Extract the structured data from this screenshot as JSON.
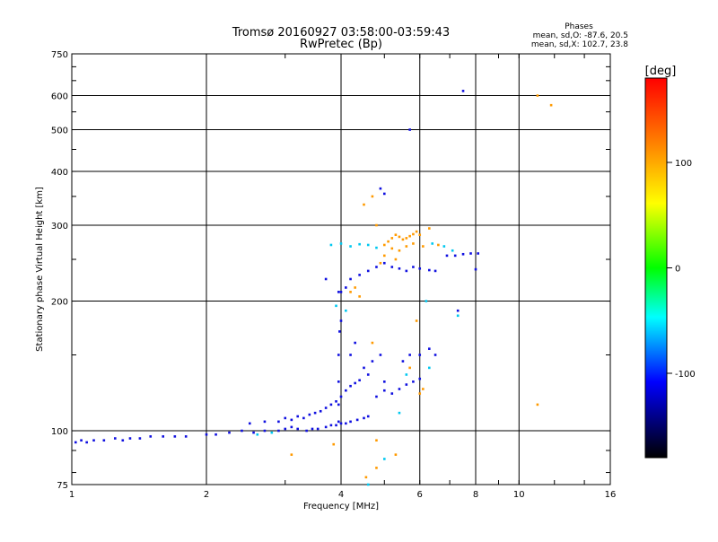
{
  "chart_data": {
    "type": "scatter",
    "title": "Tromsø 20160927 03:58:00-03:59:43",
    "subtitle": "RwPretec (Bp)",
    "xlabel": "Frequency [MHz]",
    "ylabel": "Stationary phase Virtual Height [km]",
    "x_scale": "log",
    "y_scale": "log",
    "xlim": [
      1,
      16
    ],
    "ylim": [
      75,
      750
    ],
    "x_ticks": [
      1,
      2,
      4,
      6,
      8,
      10,
      16
    ],
    "y_ticks": [
      75,
      100,
      200,
      300,
      400,
      500,
      600,
      750
    ],
    "grid": true,
    "phases_box": {
      "heading": "Phases",
      "line1": "mean, sd,O: -87.6, 20.5",
      "line2": "mean, sd,X: 102.7, 23.8"
    },
    "colorbar": {
      "label": "[deg]",
      "range": [
        -180,
        180
      ],
      "ticks": [
        100,
        0,
        -100
      ],
      "colors": [
        "#ff0000",
        "#ff8000",
        "#ffff00",
        "#00ff00",
        "#00ffff",
        "#0000ff",
        "#000000"
      ]
    },
    "series": [
      {
        "description": "O-trace (dark blue, phase ~ -100 deg)",
        "color": "#1010e0",
        "points": [
          [
            1.02,
            94
          ],
          [
            1.05,
            95
          ],
          [
            1.08,
            94
          ],
          [
            1.12,
            95
          ],
          [
            1.18,
            95
          ],
          [
            1.25,
            96
          ],
          [
            1.3,
            95
          ],
          [
            1.35,
            96
          ],
          [
            1.42,
            96
          ],
          [
            1.5,
            97
          ],
          [
            1.6,
            97
          ],
          [
            1.7,
            97
          ],
          [
            1.8,
            97
          ],
          [
            2.0,
            98
          ],
          [
            2.1,
            98
          ],
          [
            2.25,
            99
          ],
          [
            2.4,
            100
          ],
          [
            2.55,
            99
          ],
          [
            2.7,
            100
          ],
          [
            2.9,
            100
          ],
          [
            3.0,
            101
          ],
          [
            3.1,
            102
          ],
          [
            3.2,
            101
          ],
          [
            3.35,
            100
          ],
          [
            3.45,
            101
          ],
          [
            3.55,
            101
          ],
          [
            3.7,
            102
          ],
          [
            3.8,
            103
          ],
          [
            3.9,
            103
          ],
          [
            4.0,
            104
          ],
          [
            4.1,
            104
          ],
          [
            4.2,
            105
          ],
          [
            4.35,
            106
          ],
          [
            4.5,
            107
          ],
          [
            4.6,
            108
          ],
          [
            2.5,
            104
          ],
          [
            2.7,
            105
          ],
          [
            2.9,
            105
          ],
          [
            3.0,
            107
          ],
          [
            3.1,
            106
          ],
          [
            3.2,
            108
          ],
          [
            3.3,
            107
          ],
          [
            3.4,
            109
          ],
          [
            3.5,
            110
          ],
          [
            3.6,
            111
          ],
          [
            3.7,
            113
          ],
          [
            3.8,
            115
          ],
          [
            3.9,
            117
          ],
          [
            4.0,
            120
          ],
          [
            4.1,
            124
          ],
          [
            4.2,
            127
          ],
          [
            4.3,
            129
          ],
          [
            4.4,
            131
          ],
          [
            4.6,
            135
          ],
          [
            3.95,
            105
          ],
          [
            3.95,
            115
          ],
          [
            3.95,
            130
          ],
          [
            3.95,
            150
          ],
          [
            3.97,
            170
          ],
          [
            4.0,
            180
          ],
          [
            3.95,
            210
          ],
          [
            4.2,
            150
          ],
          [
            4.3,
            160
          ],
          [
            4.5,
            140
          ],
          [
            4.7,
            145
          ],
          [
            4.9,
            150
          ],
          [
            5.0,
            130
          ],
          [
            4.8,
            120
          ],
          [
            5.0,
            124
          ],
          [
            5.2,
            122
          ],
          [
            5.4,
            125
          ],
          [
            5.6,
            128
          ],
          [
            5.8,
            130
          ],
          [
            6.0,
            132
          ],
          [
            5.5,
            145
          ],
          [
            5.7,
            150
          ],
          [
            6.0,
            150
          ],
          [
            6.3,
            155
          ],
          [
            6.5,
            150
          ],
          [
            4.2,
            225
          ],
          [
            4.4,
            230
          ],
          [
            4.6,
            235
          ],
          [
            4.8,
            240
          ],
          [
            5.0,
            245
          ],
          [
            5.2,
            240
          ],
          [
            5.4,
            238
          ],
          [
            5.6,
            235
          ],
          [
            5.8,
            240
          ],
          [
            6.0,
            238
          ],
          [
            6.3,
            236
          ],
          [
            6.5,
            235
          ],
          [
            4.0,
            210
          ],
          [
            4.1,
            215
          ],
          [
            3.7,
            225
          ],
          [
            6.9,
            255
          ],
          [
            7.2,
            255
          ],
          [
            7.5,
            257
          ],
          [
            7.8,
            258
          ],
          [
            8.1,
            258
          ],
          [
            7.5,
            615
          ],
          [
            5.7,
            500
          ],
          [
            8.0,
            237
          ],
          [
            5.0,
            355
          ],
          [
            4.9,
            365
          ],
          [
            7.3,
            190
          ]
        ]
      },
      {
        "description": "X-trace (orange/yellow, phase ~ +100 deg)",
        "color": "#ff9a00",
        "points": [
          [
            5.0,
            270
          ],
          [
            5.1,
            275
          ],
          [
            5.2,
            280
          ],
          [
            5.3,
            285
          ],
          [
            5.4,
            282
          ],
          [
            5.5,
            278
          ],
          [
            5.6,
            280
          ],
          [
            5.7,
            283
          ],
          [
            5.8,
            286
          ],
          [
            5.9,
            290
          ],
          [
            6.0,
            285
          ],
          [
            5.2,
            265
          ],
          [
            5.4,
            262
          ],
          [
            5.6,
            268
          ],
          [
            5.8,
            272
          ],
          [
            6.1,
            268
          ],
          [
            5.0,
            255
          ],
          [
            5.3,
            250
          ],
          [
            6.3,
            295
          ],
          [
            6.6,
            270
          ],
          [
            11.0,
            600
          ],
          [
            11.8,
            570
          ],
          [
            11.0,
            115
          ],
          [
            4.5,
            335
          ],
          [
            4.7,
            350
          ],
          [
            4.8,
            300
          ],
          [
            4.9,
            245
          ],
          [
            4.2,
            210
          ],
          [
            4.4,
            205
          ],
          [
            4.3,
            215
          ],
          [
            6.0,
            122
          ],
          [
            6.1,
            125
          ],
          [
            4.8,
            95
          ],
          [
            3.85,
            93
          ],
          [
            4.8,
            82
          ],
          [
            5.3,
            88
          ],
          [
            4.55,
            78
          ],
          [
            3.1,
            88
          ],
          [
            5.7,
            140
          ],
          [
            4.7,
            160
          ],
          [
            5.9,
            180
          ]
        ]
      },
      {
        "description": "Cyan / light-blue points (phase ~ -60 deg)",
        "color": "#00c8f0",
        "points": [
          [
            3.8,
            270
          ],
          [
            4.0,
            272
          ],
          [
            4.2,
            268
          ],
          [
            4.4,
            271
          ],
          [
            4.6,
            270
          ],
          [
            4.8,
            266
          ],
          [
            6.4,
            272
          ],
          [
            6.8,
            268
          ],
          [
            7.1,
            262
          ],
          [
            3.9,
            195
          ],
          [
            4.1,
            190
          ],
          [
            5.6,
            135
          ],
          [
            6.3,
            140
          ],
          [
            7.3,
            185
          ],
          [
            4.6,
            75
          ],
          [
            5.0,
            86
          ],
          [
            2.6,
            98
          ],
          [
            2.8,
            99
          ],
          [
            5.4,
            110
          ],
          [
            6.2,
            200
          ]
        ]
      }
    ]
  }
}
